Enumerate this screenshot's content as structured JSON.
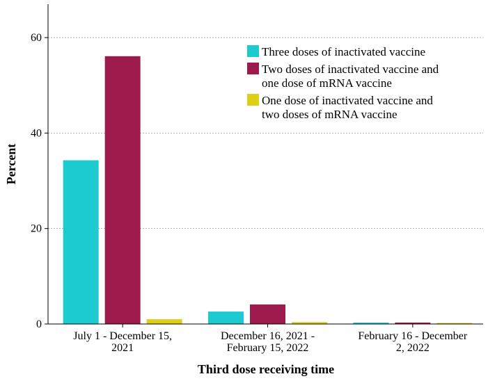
{
  "chart_data": {
    "type": "bar",
    "xlabel": "Third dose receiving time",
    "ylabel": "Percent",
    "ylim": [
      0,
      67
    ],
    "yticks": [
      0,
      20,
      40,
      60
    ],
    "grid": true,
    "legend_position": "top-right",
    "categories": [
      [
        "July 1 - December 15,",
        "2021"
      ],
      [
        "December 16, 2021 -",
        "February 15, 2022"
      ],
      [
        "February 16 - December",
        "2, 2022"
      ]
    ],
    "series": [
      {
        "name_lines": [
          "Three doses of inactivated vaccine"
        ],
        "color": "#1ccbd0",
        "values": [
          34.3,
          2.6,
          0.3
        ]
      },
      {
        "name_lines": [
          "Two doses of inactivated vaccine and",
          "one dose of mRNA vaccine"
        ],
        "color": "#9c1a4c",
        "values": [
          56.1,
          4.1,
          0.3
        ]
      },
      {
        "name_lines": [
          "One dose of inactivated vaccine and",
          "two doses of mRNA vaccine"
        ],
        "color": "#dccf15",
        "values": [
          1.0,
          0.4,
          0.2
        ]
      }
    ]
  }
}
